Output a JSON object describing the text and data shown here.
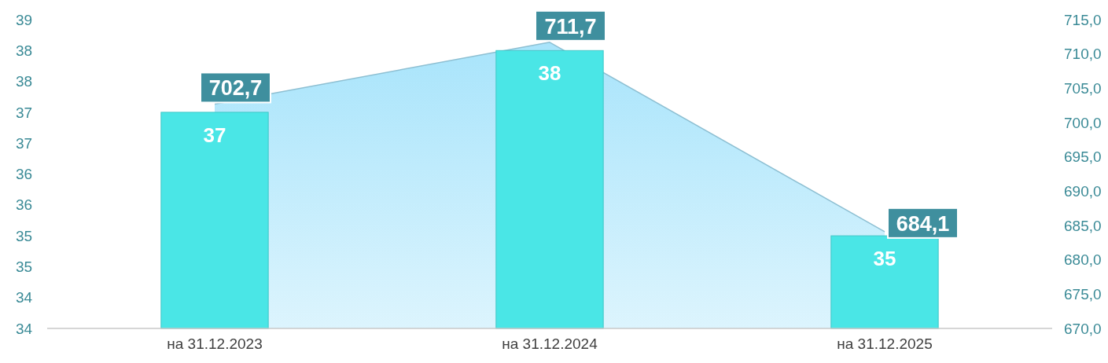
{
  "chart_data": {
    "type": "bar",
    "categories": [
      "на 31.12.2023",
      "на 31.12.2024",
      "на 31.12.2025"
    ],
    "series": [
      {
        "type": "area",
        "axis": "y2",
        "color": "#a8e4fb",
        "values": [
          702.7,
          711.7,
          684.1
        ],
        "value_labels": [
          "702,7",
          "711,7",
          "684,1"
        ]
      },
      {
        "color": "#4ae6e6",
        "values": [
          37,
          38,
          35
        ],
        "value_labels": [
          "37",
          "38",
          "35"
        ]
      }
    ],
    "ylim": [
      33.5,
      38.5
    ],
    "yticks": [
      {
        "value": 33.5,
        "label": "34"
      },
      {
        "value": 34,
        "label": "34"
      },
      {
        "value": 34.5,
        "label": "35"
      },
      {
        "value": 35,
        "label": "35"
      },
      {
        "value": 35.5,
        "label": "36"
      },
      {
        "value": 36,
        "label": "36"
      },
      {
        "value": 36.5,
        "label": "37"
      },
      {
        "value": 37,
        "label": "37"
      },
      {
        "value": 37.5,
        "label": "38"
      },
      {
        "value": 38,
        "label": "38"
      },
      {
        "value": 38.5,
        "label": "39"
      }
    ],
    "y2lim": [
      670,
      715
    ],
    "y2ticks": [
      {
        "value": 670,
        "label": "670,0"
      },
      {
        "value": 675,
        "label": "675,0"
      },
      {
        "value": 680,
        "label": "680,0"
      },
      {
        "value": 685,
        "label": "685,0"
      },
      {
        "value": 690,
        "label": "690,0"
      },
      {
        "value": 695,
        "label": "695,0"
      },
      {
        "value": 700,
        "label": "700,0"
      },
      {
        "value": 705,
        "label": "705,0"
      },
      {
        "value": 710,
        "label": "710,0"
      },
      {
        "value": 715,
        "label": "715,0"
      }
    ],
    "grid": false
  }
}
